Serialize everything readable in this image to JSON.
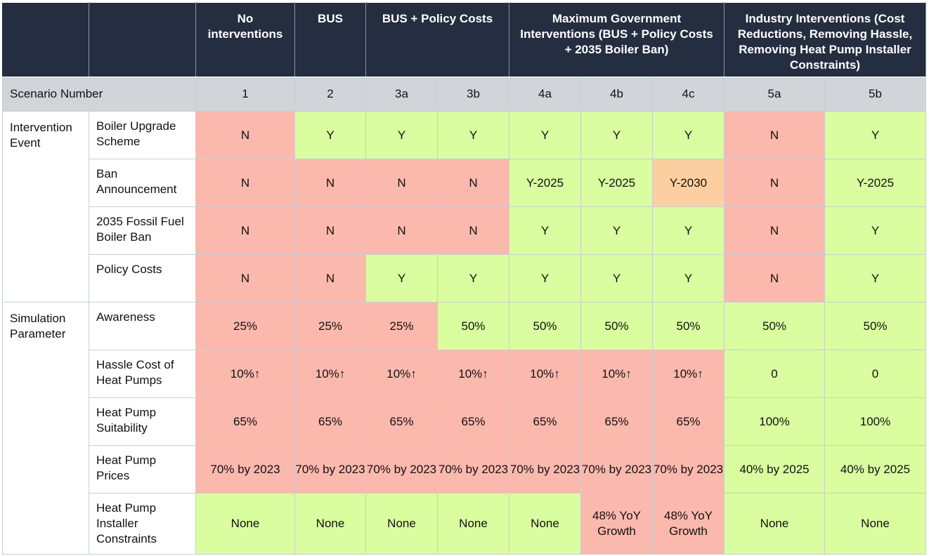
{
  "header": {
    "groups": [
      "No interventions",
      "BUS",
      "BUS + Policy Costs",
      "Maximum Government Interventions (BUS + Policy Costs + 2035 Boiler Ban)",
      "Industry Interventions (Cost Reductions, Removing Hassle, Removing Heat Pump Installer Constraints)"
    ]
  },
  "scenario_row": {
    "label": "Scenario Number",
    "numbers": [
      "1",
      "2",
      "3a",
      "3b",
      "4a",
      "4b",
      "4c",
      "5a",
      "5b"
    ]
  },
  "sections": {
    "intervention_event": "Intervention Event",
    "simulation_parameter": "Simulation Parameter"
  },
  "rows": [
    {
      "label": "Boiler Upgrade Scheme",
      "cells": [
        {
          "value": "N",
          "status": "red"
        },
        {
          "value": "Y",
          "status": "green"
        },
        {
          "value": "Y",
          "status": "green"
        },
        {
          "value": "Y",
          "status": "green"
        },
        {
          "value": "Y",
          "status": "green"
        },
        {
          "value": "Y",
          "status": "green"
        },
        {
          "value": "Y",
          "status": "green"
        },
        {
          "value": "N",
          "status": "red"
        },
        {
          "value": "Y",
          "status": "green"
        }
      ]
    },
    {
      "label": "Ban Announcement",
      "cells": [
        {
          "value": "N",
          "status": "red"
        },
        {
          "value": "N",
          "status": "red"
        },
        {
          "value": "N",
          "status": "red"
        },
        {
          "value": "N",
          "status": "red"
        },
        {
          "value": "Y-2025",
          "status": "green"
        },
        {
          "value": "Y-2025",
          "status": "green"
        },
        {
          "value": "Y-2030",
          "status": "amber"
        },
        {
          "value": "N",
          "status": "red"
        },
        {
          "value": "Y-2025",
          "status": "green"
        }
      ]
    },
    {
      "label": "2035 Fossil Fuel Boiler Ban",
      "cells": [
        {
          "value": "N",
          "status": "red"
        },
        {
          "value": "N",
          "status": "red"
        },
        {
          "value": "N",
          "status": "red"
        },
        {
          "value": "N",
          "status": "red"
        },
        {
          "value": "Y",
          "status": "green"
        },
        {
          "value": "Y",
          "status": "green"
        },
        {
          "value": "Y",
          "status": "green"
        },
        {
          "value": "N",
          "status": "red"
        },
        {
          "value": "Y",
          "status": "green"
        }
      ]
    },
    {
      "label": "Policy Costs",
      "cells": [
        {
          "value": "N",
          "status": "red"
        },
        {
          "value": "N",
          "status": "red"
        },
        {
          "value": "Y",
          "status": "green"
        },
        {
          "value": "Y",
          "status": "green"
        },
        {
          "value": "Y",
          "status": "green"
        },
        {
          "value": "Y",
          "status": "green"
        },
        {
          "value": "Y",
          "status": "green"
        },
        {
          "value": "N",
          "status": "red"
        },
        {
          "value": "Y",
          "status": "green"
        }
      ]
    },
    {
      "label": "Awareness",
      "cells": [
        {
          "value": "25%",
          "status": "red"
        },
        {
          "value": "25%",
          "status": "red"
        },
        {
          "value": "25%",
          "status": "red"
        },
        {
          "value": "50%",
          "status": "green"
        },
        {
          "value": "50%",
          "status": "green"
        },
        {
          "value": "50%",
          "status": "green"
        },
        {
          "value": "50%",
          "status": "green"
        },
        {
          "value": "50%",
          "status": "green"
        },
        {
          "value": "50%",
          "status": "green"
        }
      ]
    },
    {
      "label": "Hassle Cost of Heat Pumps",
      "cells": [
        {
          "value": "10%↑",
          "status": "red"
        },
        {
          "value": "10%↑",
          "status": "red"
        },
        {
          "value": "10%↑",
          "status": "red"
        },
        {
          "value": "10%↑",
          "status": "red"
        },
        {
          "value": "10%↑",
          "status": "red"
        },
        {
          "value": "10%↑",
          "status": "red"
        },
        {
          "value": "10%↑",
          "status": "red"
        },
        {
          "value": "0",
          "status": "green"
        },
        {
          "value": "0",
          "status": "green"
        }
      ]
    },
    {
      "label": "Heat Pump Suitability",
      "cells": [
        {
          "value": "65%",
          "status": "red"
        },
        {
          "value": "65%",
          "status": "red"
        },
        {
          "value": "65%",
          "status": "red"
        },
        {
          "value": "65%",
          "status": "red"
        },
        {
          "value": "65%",
          "status": "red"
        },
        {
          "value": "65%",
          "status": "red"
        },
        {
          "value": "65%",
          "status": "red"
        },
        {
          "value": "100%",
          "status": "green"
        },
        {
          "value": "100%",
          "status": "green"
        }
      ]
    },
    {
      "label": "Heat Pump Prices",
      "cells": [
        {
          "value": "70% by 2023",
          "status": "red"
        },
        {
          "value": "70% by 2023",
          "status": "red"
        },
        {
          "value": "70% by 2023",
          "status": "red"
        },
        {
          "value": "70% by 2023",
          "status": "red"
        },
        {
          "value": "70% by 2023",
          "status": "red"
        },
        {
          "value": "70% by 2023",
          "status": "red"
        },
        {
          "value": "70% by 2023",
          "status": "red"
        },
        {
          "value": "40% by 2025",
          "status": "green"
        },
        {
          "value": "40% by 2025",
          "status": "green"
        }
      ]
    },
    {
      "label": "Heat Pump Installer Constraints",
      "cells": [
        {
          "value": "None",
          "status": "green"
        },
        {
          "value": "None",
          "status": "green"
        },
        {
          "value": "None",
          "status": "green"
        },
        {
          "value": "None",
          "status": "green"
        },
        {
          "value": "None",
          "status": "green"
        },
        {
          "value": "48% YoY Growth",
          "status": "red"
        },
        {
          "value": "48% YoY Growth",
          "status": "red"
        },
        {
          "value": "None",
          "status": "green"
        },
        {
          "value": "None",
          "status": "green"
        }
      ]
    }
  ],
  "colors": {
    "header_bg": "#252e40",
    "scenario_bg": "#d1d5da",
    "red": "#fbb8ad",
    "green": "#d9fd9f",
    "amber": "#fdcfa0"
  }
}
